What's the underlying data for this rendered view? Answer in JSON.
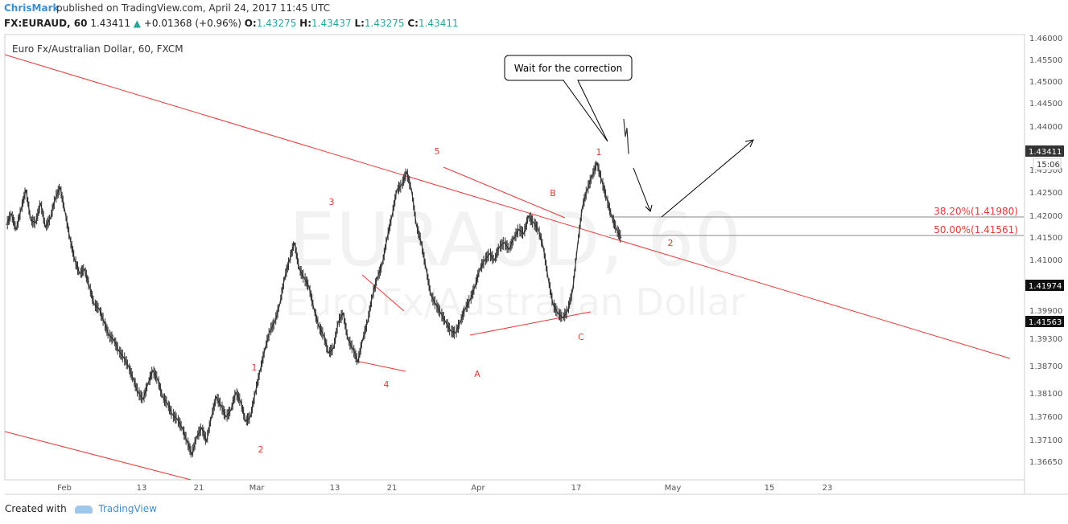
{
  "header": {
    "author": "ChrisMark",
    "published": "published on TradingView.com, April 24, 2017 11:45 UTC"
  },
  "ohlc": {
    "symbol": "FX:EURAUD, 60",
    "last": "1.43411",
    "change": "+0.01368 (+0.96%)",
    "o_label": "O:",
    "o": "1.43275",
    "h_label": "H:",
    "h": "1.43437",
    "l_label": "L:",
    "l": "1.43275",
    "c_label": "C:",
    "c": "1.43411"
  },
  "footer": {
    "created": "Created with",
    "brand": "TradingView"
  },
  "chart_data": {
    "type": "line",
    "title": "Euro Fx/Australian Dollar, 60, FXCM",
    "watermark_symbol": "EURAUD, 60",
    "watermark_name": "Euro Fx/Australian Dollar",
    "x_ticks": [
      "Feb",
      "13",
      "21",
      "Mar",
      "13",
      "21",
      "Apr",
      "17",
      "May",
      "15",
      "23"
    ],
    "y_ticks": [
      "1.46000",
      "1.45500",
      "1.45000",
      "1.44500",
      "1.44000",
      "1.43500",
      "1.42500",
      "1.42000",
      "1.41500",
      "1.41000",
      "1.39900",
      "1.39300",
      "1.38700",
      "1.38100",
      "1.37600",
      "1.37100",
      "1.36650"
    ],
    "price_labels": [
      {
        "text": "1.43411",
        "style": "dark"
      },
      {
        "text": "15:06",
        "style": "light"
      },
      {
        "text": "1.41974",
        "style": "dark"
      },
      {
        "text": "1.41563",
        "style": "dark"
      }
    ],
    "fib_levels": [
      {
        "label": "38.20%(1.41980)",
        "value": 1.4198
      },
      {
        "label": "50.00%(1.41561)",
        "value": 1.41561
      }
    ],
    "wave_labels": [
      "1",
      "2",
      "3",
      "4",
      "5",
      "A",
      "B",
      "C",
      "1",
      "2"
    ],
    "annotation": "Wait for the correction",
    "price_series": [
      1.418,
      1.4205,
      1.417,
      1.4215,
      1.426,
      1.419,
      1.4185,
      1.423,
      1.4175,
      1.4195,
      1.424,
      1.4265,
      1.421,
      1.415,
      1.41,
      1.407,
      1.408,
      1.404,
      1.4,
      1.399,
      1.396,
      1.393,
      1.392,
      1.3895,
      1.388,
      1.386,
      1.383,
      1.38,
      1.3785,
      1.382,
      1.385,
      1.383,
      1.379,
      1.3775,
      1.375,
      1.374,
      1.372,
      1.369,
      1.366,
      1.37,
      1.372,
      1.369,
      1.3745,
      1.379,
      1.377,
      1.3745,
      1.376,
      1.38,
      1.378,
      1.3735,
      1.3745,
      1.38,
      1.385,
      1.39,
      1.394,
      1.396,
      1.4,
      1.406,
      1.41,
      1.414,
      1.408,
      1.406,
      1.404,
      1.399,
      1.395,
      1.393,
      1.389,
      1.39,
      1.396,
      1.398,
      1.392,
      1.39,
      1.387,
      1.392,
      1.396,
      1.402,
      1.406,
      1.409,
      1.415,
      1.42,
      1.426,
      1.427,
      1.43,
      1.426,
      1.418,
      1.414,
      1.408,
      1.402,
      1.4,
      1.398,
      1.396,
      1.394,
      1.3935,
      1.396,
      1.399,
      1.401,
      1.404,
      1.408,
      1.41,
      1.4115,
      1.41,
      1.413,
      1.414,
      1.4125,
      1.415,
      1.417,
      1.416,
      1.42,
      1.4185,
      1.417,
      1.413,
      1.406,
      1.4,
      1.398,
      1.397,
      1.3985,
      1.403,
      1.413,
      1.422,
      1.426,
      1.429,
      1.432,
      1.428,
      1.424,
      1.42,
      1.417,
      1.415
    ]
  }
}
